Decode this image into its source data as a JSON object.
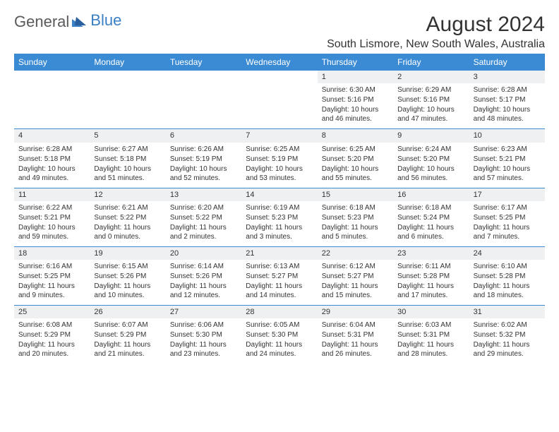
{
  "logo": {
    "word1": "General",
    "word2": "Blue"
  },
  "title": "August 2024",
  "location": "South Lismore, New South Wales, Australia",
  "colors": {
    "header_bg": "#3b8bd4",
    "header_text": "#ffffff",
    "daynum_bg": "#eef0f2",
    "border": "#3b8bd4",
    "text": "#333333",
    "logo_gray": "#5a5a5a",
    "logo_blue": "#3b7fc4"
  },
  "day_names": [
    "Sunday",
    "Monday",
    "Tuesday",
    "Wednesday",
    "Thursday",
    "Friday",
    "Saturday"
  ],
  "weeks": [
    [
      null,
      null,
      null,
      null,
      {
        "n": "1",
        "sr": "Sunrise: 6:30 AM",
        "ss": "Sunset: 5:16 PM",
        "dl": "Daylight: 10 hours and 46 minutes."
      },
      {
        "n": "2",
        "sr": "Sunrise: 6:29 AM",
        "ss": "Sunset: 5:16 PM",
        "dl": "Daylight: 10 hours and 47 minutes."
      },
      {
        "n": "3",
        "sr": "Sunrise: 6:28 AM",
        "ss": "Sunset: 5:17 PM",
        "dl": "Daylight: 10 hours and 48 minutes."
      }
    ],
    [
      {
        "n": "4",
        "sr": "Sunrise: 6:28 AM",
        "ss": "Sunset: 5:18 PM",
        "dl": "Daylight: 10 hours and 49 minutes."
      },
      {
        "n": "5",
        "sr": "Sunrise: 6:27 AM",
        "ss": "Sunset: 5:18 PM",
        "dl": "Daylight: 10 hours and 51 minutes."
      },
      {
        "n": "6",
        "sr": "Sunrise: 6:26 AM",
        "ss": "Sunset: 5:19 PM",
        "dl": "Daylight: 10 hours and 52 minutes."
      },
      {
        "n": "7",
        "sr": "Sunrise: 6:25 AM",
        "ss": "Sunset: 5:19 PM",
        "dl": "Daylight: 10 hours and 53 minutes."
      },
      {
        "n": "8",
        "sr": "Sunrise: 6:25 AM",
        "ss": "Sunset: 5:20 PM",
        "dl": "Daylight: 10 hours and 55 minutes."
      },
      {
        "n": "9",
        "sr": "Sunrise: 6:24 AM",
        "ss": "Sunset: 5:20 PM",
        "dl": "Daylight: 10 hours and 56 minutes."
      },
      {
        "n": "10",
        "sr": "Sunrise: 6:23 AM",
        "ss": "Sunset: 5:21 PM",
        "dl": "Daylight: 10 hours and 57 minutes."
      }
    ],
    [
      {
        "n": "11",
        "sr": "Sunrise: 6:22 AM",
        "ss": "Sunset: 5:21 PM",
        "dl": "Daylight: 10 hours and 59 minutes."
      },
      {
        "n": "12",
        "sr": "Sunrise: 6:21 AM",
        "ss": "Sunset: 5:22 PM",
        "dl": "Daylight: 11 hours and 0 minutes."
      },
      {
        "n": "13",
        "sr": "Sunrise: 6:20 AM",
        "ss": "Sunset: 5:22 PM",
        "dl": "Daylight: 11 hours and 2 minutes."
      },
      {
        "n": "14",
        "sr": "Sunrise: 6:19 AM",
        "ss": "Sunset: 5:23 PM",
        "dl": "Daylight: 11 hours and 3 minutes."
      },
      {
        "n": "15",
        "sr": "Sunrise: 6:18 AM",
        "ss": "Sunset: 5:23 PM",
        "dl": "Daylight: 11 hours and 5 minutes."
      },
      {
        "n": "16",
        "sr": "Sunrise: 6:18 AM",
        "ss": "Sunset: 5:24 PM",
        "dl": "Daylight: 11 hours and 6 minutes."
      },
      {
        "n": "17",
        "sr": "Sunrise: 6:17 AM",
        "ss": "Sunset: 5:25 PM",
        "dl": "Daylight: 11 hours and 7 minutes."
      }
    ],
    [
      {
        "n": "18",
        "sr": "Sunrise: 6:16 AM",
        "ss": "Sunset: 5:25 PM",
        "dl": "Daylight: 11 hours and 9 minutes."
      },
      {
        "n": "19",
        "sr": "Sunrise: 6:15 AM",
        "ss": "Sunset: 5:26 PM",
        "dl": "Daylight: 11 hours and 10 minutes."
      },
      {
        "n": "20",
        "sr": "Sunrise: 6:14 AM",
        "ss": "Sunset: 5:26 PM",
        "dl": "Daylight: 11 hours and 12 minutes."
      },
      {
        "n": "21",
        "sr": "Sunrise: 6:13 AM",
        "ss": "Sunset: 5:27 PM",
        "dl": "Daylight: 11 hours and 14 minutes."
      },
      {
        "n": "22",
        "sr": "Sunrise: 6:12 AM",
        "ss": "Sunset: 5:27 PM",
        "dl": "Daylight: 11 hours and 15 minutes."
      },
      {
        "n": "23",
        "sr": "Sunrise: 6:11 AM",
        "ss": "Sunset: 5:28 PM",
        "dl": "Daylight: 11 hours and 17 minutes."
      },
      {
        "n": "24",
        "sr": "Sunrise: 6:10 AM",
        "ss": "Sunset: 5:28 PM",
        "dl": "Daylight: 11 hours and 18 minutes."
      }
    ],
    [
      {
        "n": "25",
        "sr": "Sunrise: 6:08 AM",
        "ss": "Sunset: 5:29 PM",
        "dl": "Daylight: 11 hours and 20 minutes."
      },
      {
        "n": "26",
        "sr": "Sunrise: 6:07 AM",
        "ss": "Sunset: 5:29 PM",
        "dl": "Daylight: 11 hours and 21 minutes."
      },
      {
        "n": "27",
        "sr": "Sunrise: 6:06 AM",
        "ss": "Sunset: 5:30 PM",
        "dl": "Daylight: 11 hours and 23 minutes."
      },
      {
        "n": "28",
        "sr": "Sunrise: 6:05 AM",
        "ss": "Sunset: 5:30 PM",
        "dl": "Daylight: 11 hours and 24 minutes."
      },
      {
        "n": "29",
        "sr": "Sunrise: 6:04 AM",
        "ss": "Sunset: 5:31 PM",
        "dl": "Daylight: 11 hours and 26 minutes."
      },
      {
        "n": "30",
        "sr": "Sunrise: 6:03 AM",
        "ss": "Sunset: 5:31 PM",
        "dl": "Daylight: 11 hours and 28 minutes."
      },
      {
        "n": "31",
        "sr": "Sunrise: 6:02 AM",
        "ss": "Sunset: 5:32 PM",
        "dl": "Daylight: 11 hours and 29 minutes."
      }
    ]
  ]
}
